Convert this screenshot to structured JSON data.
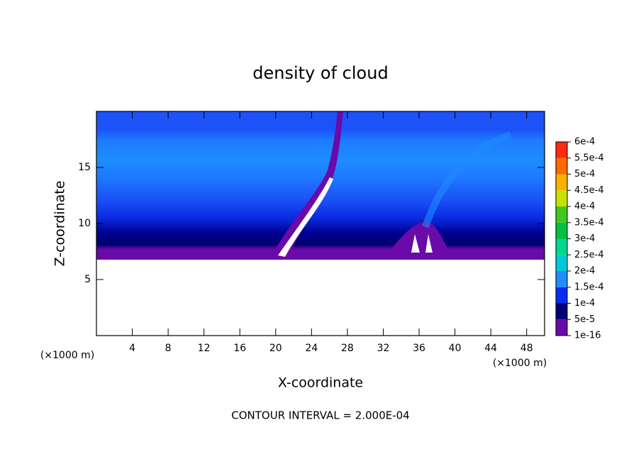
{
  "chart_data": {
    "type": "contour",
    "title": "density of cloud",
    "x_label": "X-coordinate",
    "y_label": "Z-coordinate",
    "x_unit": "(×1000 m)",
    "y_unit": "(×1000 m)",
    "footer": "CONTOUR INTERVAL = 2.000E-04",
    "xlim": [
      0,
      50
    ],
    "xticks": [
      4,
      8,
      12,
      16,
      20,
      24,
      28,
      32,
      36,
      40,
      44,
      48
    ],
    "ylim": [
      0,
      20
    ],
    "yticks": [
      5,
      10,
      15
    ],
    "colorbar": {
      "levels": [
        {
          "value": 1e-16,
          "label": "1e-16"
        },
        {
          "value": 5e-05,
          "label": "5e-5"
        },
        {
          "value": 0.0001,
          "label": "1e-4"
        },
        {
          "value": 0.00015,
          "label": "1.5e-4"
        },
        {
          "value": 0.0002,
          "label": "2e-4"
        },
        {
          "value": 0.00025,
          "label": "2.5e-4"
        },
        {
          "value": 0.0003,
          "label": "3e-4"
        },
        {
          "value": 0.00035,
          "label": "3.5e-4"
        },
        {
          "value": 0.0004,
          "label": "4e-4"
        },
        {
          "value": 0.00045,
          "label": "4.5e-4"
        },
        {
          "value": 0.0005,
          "label": "5e-4"
        },
        {
          "value": 0.00055,
          "label": "5.5e-4"
        },
        {
          "value": 0.0006,
          "label": "6e-4"
        }
      ],
      "colors": [
        "#6a0aa8",
        "#00007a",
        "#0a2cf0",
        "#1f8cff",
        "#00c8d8",
        "#00d890",
        "#00c040",
        "#40c820",
        "#c8e000",
        "#ffb000",
        "#ff6a00",
        "#ff2a10",
        "#ff9090"
      ]
    }
  }
}
